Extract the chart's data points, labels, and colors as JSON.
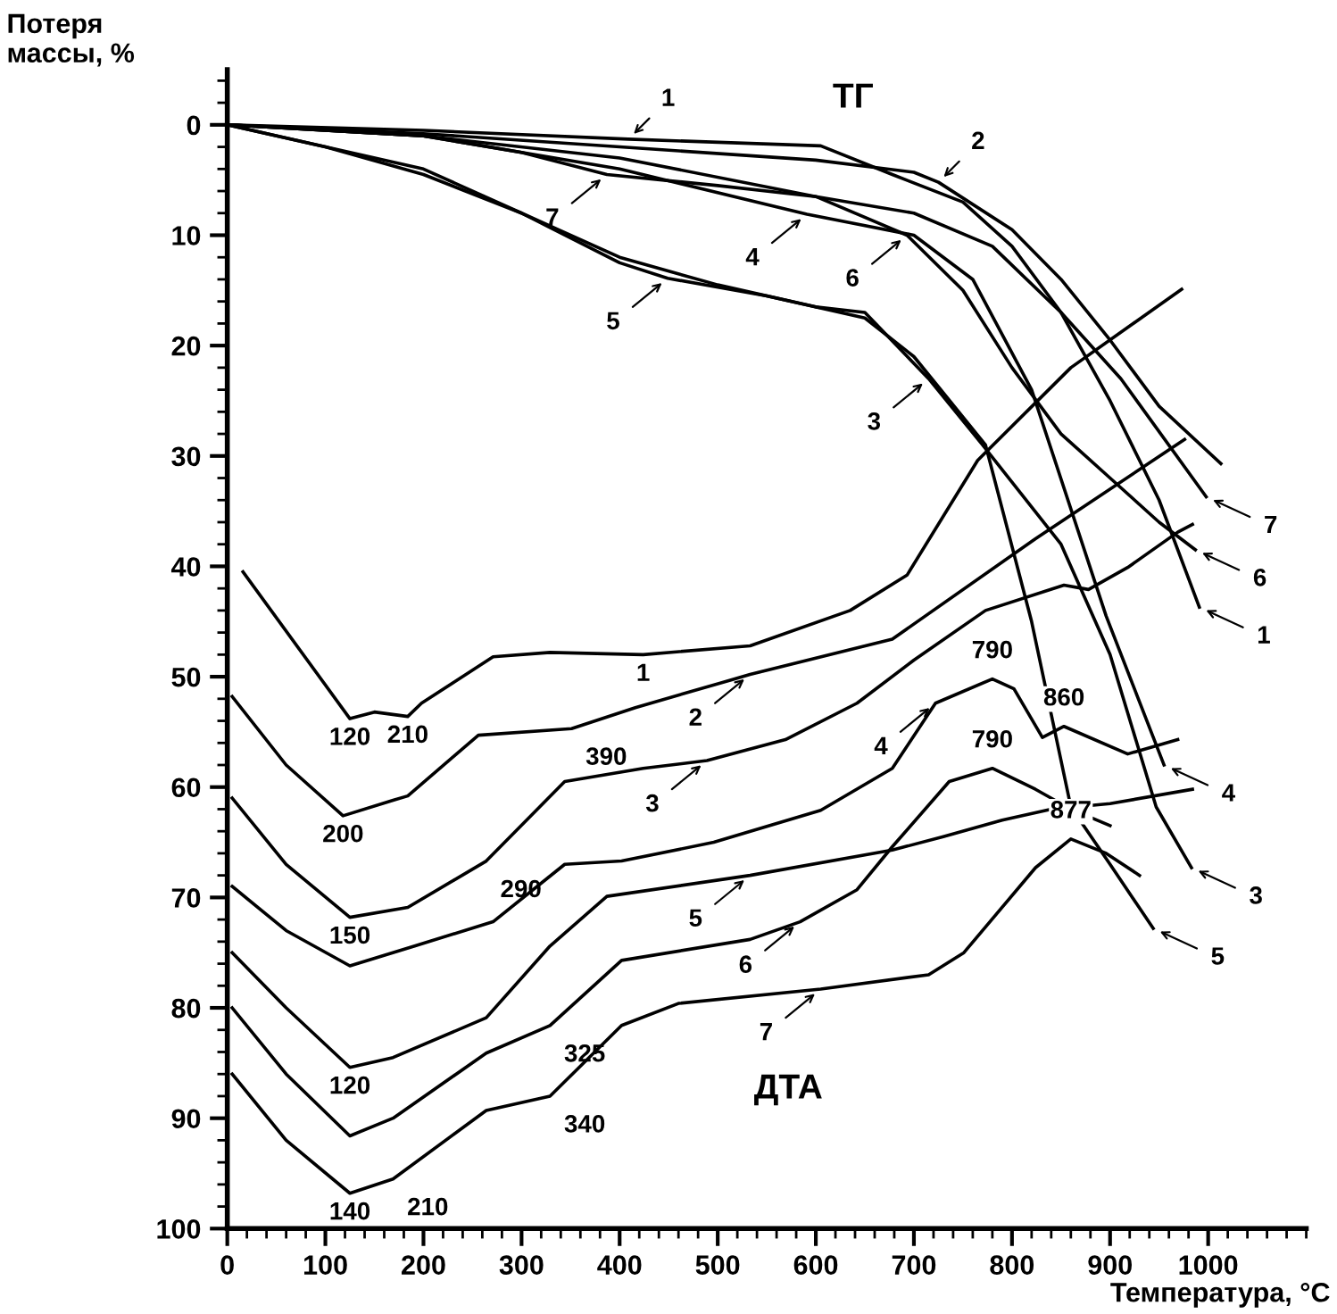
{
  "chart_data": {
    "type": "line",
    "xlabel": "Температура, °C",
    "ylabel": "Потеря\nмассы, %",
    "xlim": [
      0,
      1100
    ],
    "ylim": [
      100,
      -5
    ],
    "xticks": [
      0,
      100,
      200,
      300,
      400,
      500,
      600,
      700,
      800,
      900,
      1000
    ],
    "yticks": [
      0,
      10,
      20,
      30,
      40,
      50,
      60,
      70,
      80,
      90,
      100
    ],
    "grid": false,
    "legend": false,
    "marker": "none",
    "line_style": "solid",
    "series": [
      {
        "color": "#000000",
        "x": [
          0,
          200,
          409,
          605,
          678,
          750,
          800,
          850,
          900,
          950,
          991
        ],
        "values": [
          0,
          0.5,
          1.3,
          1.9,
          4.5,
          7,
          11,
          17,
          25,
          34,
          43.7
        ]
      },
      {
        "color": "#000000",
        "x": [
          0,
          200,
          400,
          600,
          700,
          725,
          800,
          850,
          900,
          950,
          1013
        ],
        "values": [
          0,
          0.8,
          2,
          3.2,
          4.3,
          5.2,
          9.5,
          14,
          19.5,
          25.5,
          30.7
        ]
      },
      {
        "color": "#000000",
        "x": [
          0,
          100,
          200,
          300,
          400,
          500,
          600,
          650,
          715,
          770,
          850,
          900,
          947,
          983
        ],
        "values": [
          0,
          2,
          4.5,
          8,
          12,
          14.5,
          16.5,
          17,
          23,
          29,
          38,
          48,
          61.8,
          67.3
        ]
      },
      {
        "color": "#000000",
        "x": [
          0,
          200,
          400,
          591,
          700,
          760,
          820,
          896,
          955
        ],
        "values": [
          0,
          1,
          4,
          8.1,
          10,
          14,
          24,
          44.5,
          58
        ]
      },
      {
        "color": "#000000",
        "x": [
          0,
          100,
          200,
          300,
          400,
          449,
          550,
          650,
          700,
          773,
          820,
          860,
          900,
          944
        ],
        "values": [
          0,
          2,
          4,
          8,
          12.5,
          13.9,
          15.5,
          17.5,
          21,
          29,
          45,
          61.8,
          67,
          72.8
        ]
      },
      {
        "color": "#000000",
        "x": [
          0,
          200,
          400,
          600,
          693,
          750,
          800,
          850,
          900,
          950,
          987
        ],
        "values": [
          0,
          1,
          3,
          6.5,
          10,
          15,
          22,
          28,
          32,
          36,
          38.5
        ]
      },
      {
        "color": "#000000",
        "x": [
          0,
          200,
          300,
          387,
          500,
          600,
          700,
          780,
          850,
          911,
          998
        ],
        "values": [
          0,
          1,
          2.5,
          4.5,
          5.5,
          6.5,
          8,
          11,
          17,
          23,
          33.7
        ]
      },
      {
        "color": "#000000",
        "x": [
          16,
          125,
          150,
          184,
          198,
          271,
          329,
          424,
          533,
          635,
          693,
          765,
          860,
          973
        ],
        "values": [
          40.5,
          53.8,
          53.2,
          53.6,
          52.4,
          48.2,
          47.8,
          48,
          47.2,
          44,
          40.8,
          30.4,
          22,
          14.9
        ]
      },
      {
        "color": "#000000",
        "x": [
          5,
          60,
          118,
          169,
          184,
          256,
          351,
          416,
          533,
          678,
          824,
          976
        ],
        "values": [
          51.8,
          58,
          62.6,
          61.2,
          60.8,
          55.3,
          54.7,
          52.8,
          49.8,
          46.6,
          37.5,
          28.5
        ]
      },
      {
        "color": "#000000",
        "x": [
          5,
          60,
          125,
          184,
          264,
          344,
          424,
          489,
          569,
          642,
          700,
          773,
          853,
          878,
          918,
          969,
          984
        ],
        "values": [
          61,
          67,
          71.8,
          70.9,
          66.7,
          59.5,
          58.3,
          57.6,
          55.7,
          52.4,
          48.5,
          44,
          41.7,
          42.1,
          40.1,
          36.9,
          36.2
        ]
      },
      {
        "color": "#000000",
        "x": [
          5,
          60,
          125,
          191,
          271,
          344,
          402,
          496,
          605,
          678,
          722,
          780,
          802,
          831,
          853,
          918,
          969
        ],
        "values": [
          69,
          73,
          76.2,
          74.4,
          72.2,
          67,
          66.7,
          65,
          62.1,
          58.3,
          52.4,
          50.2,
          51.1,
          55.5,
          54.5,
          57,
          55.7
        ]
      },
      {
        "color": "#000000",
        "x": [
          5,
          60,
          125,
          169,
          264,
          329,
          387,
          533,
          678,
          730,
          790,
          840,
          900,
          984
        ],
        "values": [
          75,
          80,
          85.4,
          84.5,
          80.9,
          74.4,
          69.9,
          68,
          65.7,
          64.5,
          63,
          62,
          61.5,
          60.2
        ]
      },
      {
        "color": "#000000",
        "x": [
          5,
          60,
          125,
          169,
          264,
          329,
          402,
          533,
          584,
          642,
          678,
          736,
          780,
          824,
          860,
          900
        ],
        "values": [
          80,
          86,
          91.6,
          90,
          84.1,
          81.6,
          75.7,
          73.8,
          72.2,
          69.3,
          65.4,
          59.5,
          58.3,
          60.2,
          62,
          63.5
        ]
      },
      {
        "color": "#000000",
        "x": [
          5,
          60,
          125,
          169,
          264,
          329,
          402,
          460,
          605,
          715,
          751,
          824,
          860,
          896,
          930
        ],
        "values": [
          86,
          92,
          96.8,
          95.5,
          89.3,
          88,
          81.6,
          79.6,
          78.3,
          77,
          75,
          67.3,
          64.7,
          66,
          68
        ]
      }
    ],
    "annotations": [
      "ТГ",
      "ДТА",
      {
        "text": "1",
        "x": 409,
        "y": 1.3
      },
      {
        "text": "2",
        "x": 725,
        "y": 5.2
      },
      {
        "text": "7",
        "x": 387,
        "y": 4.5
      },
      {
        "text": "4",
        "x": 591,
        "y": 8.1
      },
      {
        "text": "6",
        "x": 693,
        "y": 10
      },
      {
        "text": "5",
        "x": 449,
        "y": 13.9
      },
      {
        "text": "3",
        "x": 715,
        "y": 23
      },
      {
        "text": "7",
        "x": 998,
        "y": 33.7
      },
      {
        "text": "6",
        "x": 987,
        "y": 38.5
      },
      {
        "text": "4",
        "x": 955,
        "y": 58
      },
      {
        "text": "5",
        "x": 944,
        "y": 72.8
      },
      {
        "text": "1",
        "x": 991,
        "y": 43.7
      },
      {
        "text": "3",
        "x": 983,
        "y": 67.3
      },
      {
        "text": "1",
        "x": 424,
        "y": 48
      },
      {
        "text": "2",
        "x": 533,
        "y": 49.8
      },
      {
        "text": "3",
        "x": 489,
        "y": 57.6
      },
      {
        "text": "4",
        "x": 722,
        "y": 52.4
      },
      {
        "text": "5",
        "x": 533,
        "y": 68
      },
      {
        "text": "6",
        "x": 584,
        "y": 72.2
      },
      {
        "text": "7",
        "x": 605,
        "y": 78.3
      },
      {
        "text": "120",
        "x": 125,
        "y": 53.8
      },
      {
        "text": "210",
        "x": 184,
        "y": 53.6
      },
      {
        "text": "390",
        "x": 351,
        "y": 54.7
      },
      {
        "text": "790",
        "x": 780,
        "y": 50.2
      },
      {
        "text": "860",
        "x": 853,
        "y": 54.5
      },
      {
        "text": "790",
        "x": 780,
        "y": 58.3
      },
      {
        "text": "200",
        "x": 118,
        "y": 62.6
      },
      {
        "text": "290",
        "x": 264,
        "y": 66.7
      },
      {
        "text": "150",
        "x": 125,
        "y": 71.8
      },
      {
        "text": "877",
        "x": 860,
        "y": 64.7
      },
      {
        "text": "120",
        "x": 125,
        "y": 85.4
      },
      {
        "text": "325",
        "x": 329,
        "y": 81.6
      },
      {
        "text": "340",
        "x": 329,
        "y": 88
      },
      {
        "text": "140",
        "x": 125,
        "y": 96.8
      },
      {
        "text": "210",
        "x": 169,
        "y": 95.5
      }
    ]
  }
}
